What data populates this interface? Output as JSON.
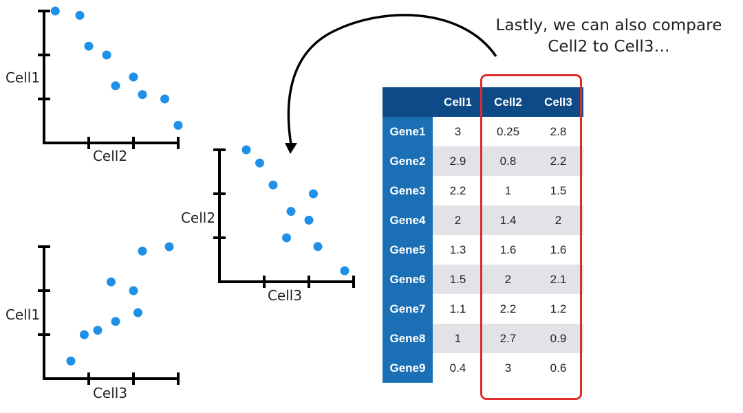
{
  "caption": {
    "line1": "Lastly, we can also compare",
    "line2": "Cell2 to Cell3…"
  },
  "colors": {
    "point": "#1e90e8",
    "axis": "#000000",
    "header_bg": "#0d4a86",
    "row_header_bg": "#1b6fb5",
    "shade_row": "#e1e3e7",
    "highlight": "#dd2b2b"
  },
  "table": {
    "columns": [
      "Cell1",
      "Cell2",
      "Cell3"
    ],
    "rows": [
      {
        "gene": "Gene1",
        "values": [
          "3",
          "0.25",
          "2.8"
        ]
      },
      {
        "gene": "Gene2",
        "values": [
          "2.9",
          "0.8",
          "2.2"
        ]
      },
      {
        "gene": "Gene3",
        "values": [
          "2.2",
          "1",
          "1.5"
        ]
      },
      {
        "gene": "Gene4",
        "values": [
          "2",
          "1.4",
          "2"
        ]
      },
      {
        "gene": "Gene5",
        "values": [
          "1.3",
          "1.6",
          "1.6"
        ]
      },
      {
        "gene": "Gene6",
        "values": [
          "1.5",
          "2",
          "2.1"
        ]
      },
      {
        "gene": "Gene7",
        "values": [
          "1.1",
          "2.2",
          "1.2"
        ]
      },
      {
        "gene": "Gene8",
        "values": [
          "1",
          "2.7",
          "0.9"
        ]
      },
      {
        "gene": "Gene9",
        "values": [
          "0.4",
          "3",
          "0.6"
        ]
      }
    ]
  },
  "chart_data": [
    {
      "type": "scatter",
      "xlabel": "Cell2",
      "ylabel": "Cell1",
      "xlim": [
        0,
        3
      ],
      "ylim": [
        0,
        3
      ],
      "x": [
        0.25,
        0.8,
        1,
        1.4,
        1.6,
        2,
        2.2,
        2.7,
        3
      ],
      "y": [
        3,
        2.9,
        2.2,
        2,
        1.3,
        1.5,
        1.1,
        1,
        0.4
      ],
      "grid": false
    },
    {
      "type": "scatter",
      "xlabel": "Cell3",
      "ylabel": "Cell2",
      "xlim": [
        0,
        3
      ],
      "ylim": [
        0,
        3
      ],
      "x": [
        0.6,
        0.9,
        1.2,
        1.5,
        1.6,
        2,
        2.1,
        2.2,
        2.8
      ],
      "y": [
        3,
        2.7,
        2.2,
        1,
        1.6,
        1.4,
        2,
        0.8,
        0.25
      ],
      "grid": false
    },
    {
      "type": "scatter",
      "xlabel": "Cell3",
      "ylabel": "Cell1",
      "xlim": [
        0,
        3
      ],
      "ylim": [
        0,
        3
      ],
      "x": [
        0.6,
        0.9,
        1.2,
        1.5,
        1.6,
        2,
        2.1,
        2.2,
        2.8
      ],
      "y": [
        0.4,
        1,
        1.1,
        2.2,
        1.3,
        2,
        1.5,
        2.9,
        3
      ],
      "grid": false
    }
  ]
}
